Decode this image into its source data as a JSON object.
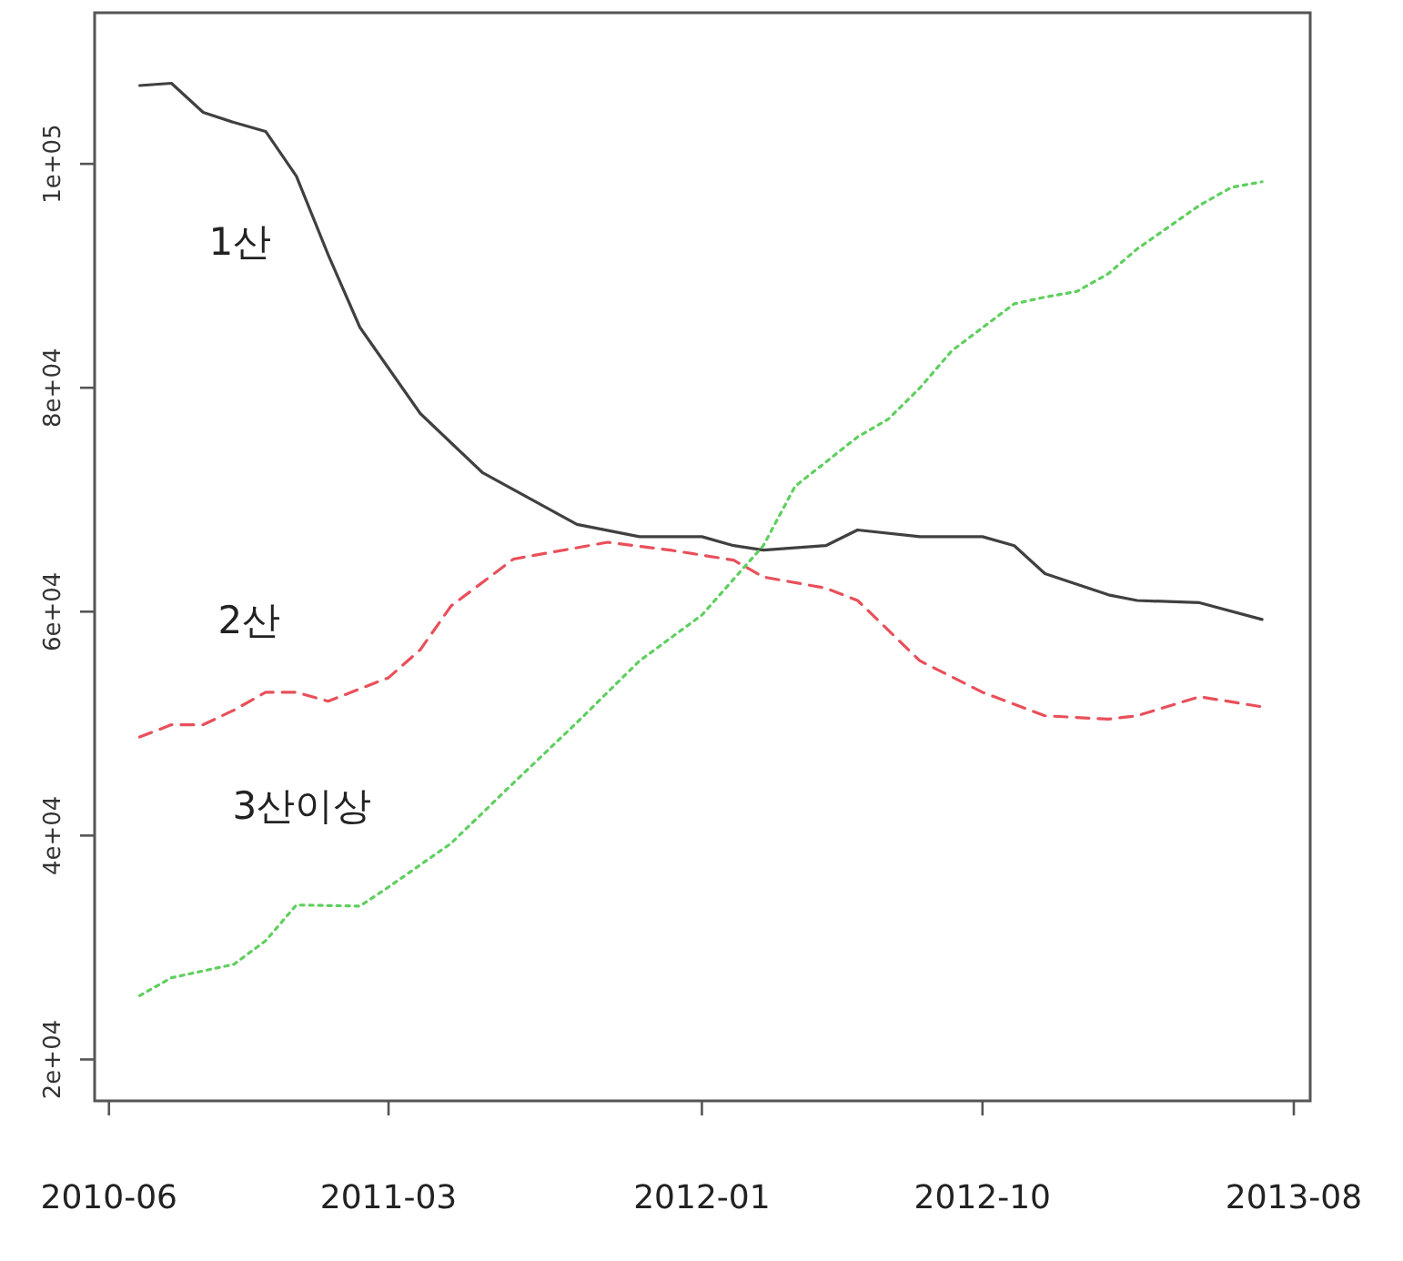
{
  "chart_data": {
    "type": "line",
    "xlim": [
      "2010-05-18",
      "2013-08-17"
    ],
    "ylim": [
      16300,
      113500
    ],
    "xticks": [
      "2010-06",
      "2011-03",
      "2012-01",
      "2012-10",
      "2013-08"
    ],
    "yticks": [
      {
        "value": 20000,
        "label": "2e+04"
      },
      {
        "value": 40000,
        "label": "4e+04"
      },
      {
        "value": 60000,
        "label": "6e+04"
      },
      {
        "value": 80000,
        "label": "8e+04"
      },
      {
        "value": 100000,
        "label": "1e+05"
      }
    ],
    "series": [
      {
        "name": "1산",
        "color": "#404040",
        "line_style": "solid",
        "x": [
          "2010-07",
          "2010-08",
          "2010-09",
          "2010-10",
          "2010-11",
          "2010-12",
          "2011-01",
          "2011-02",
          "2011-04",
          "2011-06",
          "2011-09",
          "2011-11",
          "2012-01",
          "2012-02",
          "2012-03",
          "2012-05",
          "2012-06",
          "2012-08",
          "2012-10",
          "2012-11",
          "2012-12",
          "2013-02",
          "2013-03",
          "2013-05",
          "2013-07"
        ],
        "values": [
          107000,
          107200,
          104600,
          103700,
          102900,
          98900,
          91900,
          85400,
          77700,
          72400,
          67800,
          66700,
          66700,
          65900,
          65500,
          65900,
          67300,
          66700,
          66700,
          65900,
          63400,
          61500,
          61000,
          60800,
          59300
        ]
      },
      {
        "name": "2산",
        "color": "#e8505a",
        "line_style": "dashed",
        "x": [
          "2010-07",
          "2010-08",
          "2010-09",
          "2010-10",
          "2010-11",
          "2010-12",
          "2011-01",
          "2011-03",
          "2011-04",
          "2011-05",
          "2011-07",
          "2011-10",
          "2011-12",
          "2012-02",
          "2012-03",
          "2012-05",
          "2012-06",
          "2012-08",
          "2012-10",
          "2012-12",
          "2013-02",
          "2013-03",
          "2013-05",
          "2013-07"
        ],
        "values": [
          48800,
          49900,
          49900,
          51200,
          52800,
          52800,
          52000,
          54100,
          56600,
          60500,
          64700,
          66200,
          65500,
          64600,
          63100,
          62100,
          61000,
          55600,
          52800,
          50700,
          50400,
          50700,
          52400,
          51500
        ]
      },
      {
        "name": "3산이상",
        "color": "#5fcf5f",
        "line_style": "dotted",
        "x": [
          "2010-07",
          "2010-08",
          "2010-10",
          "2010-11",
          "2010-12",
          "2011-02",
          "2011-03",
          "2011-05",
          "2011-07",
          "2011-09",
          "2011-11",
          "2012-01",
          "2012-03",
          "2012-04",
          "2012-06",
          "2012-07",
          "2012-08",
          "2012-09",
          "2012-11",
          "2012-12",
          "2013-01",
          "2013-02",
          "2013-03",
          "2013-05",
          "2013-06",
          "2013-07"
        ],
        "values": [
          25700,
          27300,
          28500,
          30600,
          33800,
          33700,
          35400,
          39300,
          44700,
          50100,
          55600,
          59700,
          65900,
          71200,
          75600,
          77200,
          80000,
          83300,
          87500,
          88100,
          88600,
          90200,
          92400,
          96300,
          97900,
          98400
        ]
      }
    ]
  }
}
